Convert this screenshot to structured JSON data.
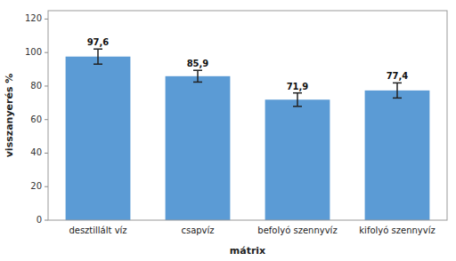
{
  "chart_data": {
    "type": "bar",
    "categories": [
      "desztillált víz",
      "csapvíz",
      "befolyó szennyvíz",
      "kifolyó szennyvíz"
    ],
    "values": [
      97.6,
      85.9,
      71.9,
      77.4
    ],
    "errors": [
      4.5,
      3.5,
      4.0,
      4.5
    ],
    "value_labels": [
      "97,6",
      "85,9",
      "71,9",
      "77,4"
    ],
    "data_labels": true,
    "color": "#5B9BD5",
    "xlabel": "mátrix",
    "ylabel": "visszanyerés %",
    "ylim": [
      0,
      125
    ],
    "yticks": [
      0,
      20,
      40,
      60,
      80,
      100,
      120
    ],
    "grid": false
  }
}
